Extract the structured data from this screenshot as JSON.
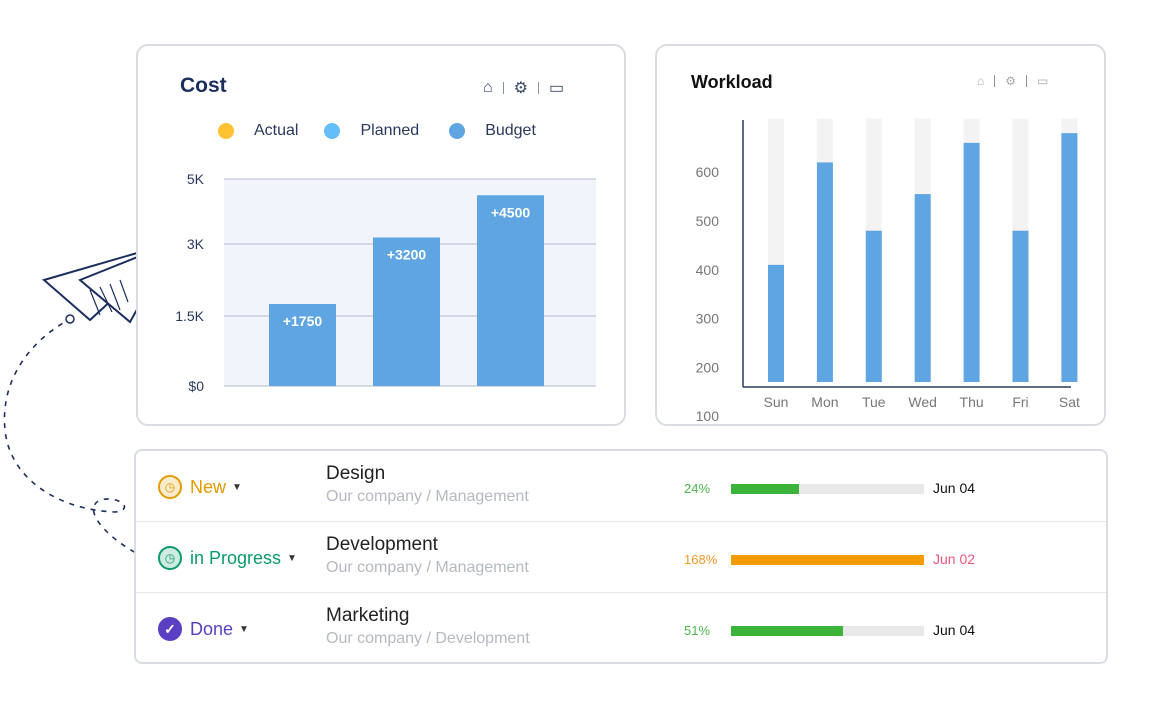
{
  "cost": {
    "title": "Cost",
    "icons": [
      "home-icon",
      "gear-icon",
      "wallet-icon"
    ],
    "legend": [
      {
        "label": "Actual",
        "color": "#ffc233"
      },
      {
        "label": "Planned",
        "color": "#66bdfc"
      },
      {
        "label": "Budget",
        "color": "#5ea5e2"
      }
    ]
  },
  "workload": {
    "title": "Workload",
    "icons": [
      "home-icon",
      "gear-icon",
      "wallet-icon"
    ]
  },
  "chart_data": [
    {
      "type": "bar",
      "title": "Cost",
      "yticks": [
        "$0",
        "1.5K",
        "3K",
        "5K"
      ],
      "ytick_values": [
        0,
        1500,
        3000,
        5000
      ],
      "values": [
        1750,
        3200,
        4500
      ],
      "labels": [
        "+1750",
        "+3200",
        "+4500"
      ],
      "color": "#5ea5e2",
      "grid": true
    },
    {
      "type": "bar",
      "title": "Workload",
      "categories": [
        "Sun",
        "Mon",
        "Tue",
        "Wed",
        "Thu",
        "Fri",
        "Sat"
      ],
      "values": [
        320,
        530,
        390,
        465,
        570,
        390,
        590
      ],
      "ylim": [
        80,
        620
      ],
      "yticks": [
        100,
        200,
        300,
        400,
        500,
        600
      ],
      "color": "#5ea5e2",
      "track_color": "#f3f3f3"
    }
  ],
  "tasks": [
    {
      "status": "New",
      "status_color": "#e39b00",
      "icon": "clock-icon",
      "name": "Design",
      "path": "Our company / Management",
      "pct": "24%",
      "pct_color": "#4cb84c",
      "fill": 0.35,
      "bar_color": "#3cb43c",
      "date": "Jun 04",
      "date_color": "#111"
    },
    {
      "status": "in Progress",
      "status_color": "#0d9b6a",
      "icon": "clock-icon",
      "name": "Development",
      "path": "Our company / Management",
      "pct": "168%",
      "pct_color": "#f19a25",
      "fill": 1.0,
      "bar_color": "#f59a00",
      "date": "Jun 02",
      "date_color": "#e8577a"
    },
    {
      "status": "Done",
      "status_color": "#5b3fc2",
      "icon": "check-icon",
      "name": "Marketing",
      "path": "Our company / Development",
      "pct": "51%",
      "pct_color": "#4cb84c",
      "fill": 0.58,
      "bar_color": "#3cb43c",
      "date": "Jun 04",
      "date_color": "#111"
    }
  ]
}
